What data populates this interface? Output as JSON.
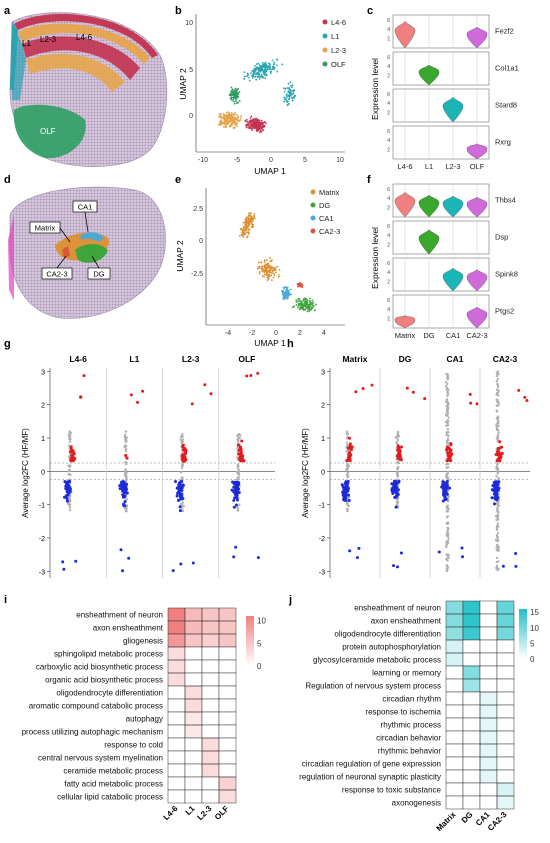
{
  "panel_letters": {
    "a": "a",
    "b": "b",
    "c": "c",
    "d": "d",
    "e": "e",
    "f": "f",
    "g": "g",
    "h": "h",
    "i": "i",
    "j": "j"
  },
  "colors": {
    "L4-6": "#c2334f",
    "L1": "#2ba3b3",
    "L2-3": "#e6a54d",
    "OLF": "#2e9e63",
    "Matrix": "#dc8f2e",
    "DG": "#3ea53c",
    "CA1": "#4ea8d6",
    "CA2-3": "#d9553c",
    "slice": "#b9a6c2",
    "up": "#e41a1c",
    "down": "#1d2bd6",
    "ns": "#b0b0b0",
    "heat_red": "#f08080",
    "heat_teal": "#20c0c8"
  },
  "brain_a": {
    "labels": [
      "L1",
      "L2-3",
      "L4-6",
      "OLF"
    ]
  },
  "brain_d": {
    "labels": [
      "CA1",
      "Matrix",
      "CA2-3",
      "DG"
    ]
  },
  "umap_b": {
    "xlabel": "UMAP 1",
    "ylabel": "UMAP 2",
    "xticks": [
      "-10",
      "-5",
      "0",
      "5",
      "10"
    ],
    "yticks": [
      "10",
      "5",
      "0"
    ],
    "legend": [
      "L4-6",
      "L1",
      "L2-3",
      "OLF"
    ]
  },
  "umap_e": {
    "xlabel": "UMAP 1",
    "ylabel": "UMAP 2",
    "xticks": [
      "-4",
      "-2",
      "0",
      "2",
      "4"
    ],
    "yticks": [
      "2.5",
      "0",
      "-2.5"
    ],
    "legend": [
      "Matrix",
      "DG",
      "CA1",
      "CA2-3"
    ]
  },
  "violin_c": {
    "ylabel": "Expression level",
    "genes": [
      "Fezf2",
      "Col1a1",
      "Stard8",
      "Rxrg"
    ],
    "groups": [
      "L4-6",
      "L1",
      "L2-3",
      "OLF"
    ],
    "yticks": [
      "0",
      "2",
      "4",
      "6"
    ],
    "expr": [
      [
        5.6,
        0,
        0,
        4.4
      ],
      [
        0,
        4.2,
        0,
        0
      ],
      [
        0,
        0,
        5.2,
        0
      ],
      [
        0,
        0,
        0,
        3.2
      ]
    ]
  },
  "violin_f": {
    "ylabel": "Expression level",
    "genes": [
      "Thbs4",
      "Dsp",
      "Spink8",
      "Ptgs2"
    ],
    "groups": [
      "Matrix",
      "DG",
      "CA1",
      "CA2-3"
    ],
    "yticks": [
      "0",
      "2",
      "4",
      "6"
    ],
    "expr": [
      [
        5.2,
        4.6,
        4.4,
        4.2
      ],
      [
        0,
        5.1,
        0,
        0
      ],
      [
        0,
        0,
        4.8,
        4.5
      ],
      [
        2.6,
        0,
        0,
        4.4
      ]
    ]
  },
  "volcano_g": {
    "ylabel": "Average log2FC (HF/MF)",
    "yticks": [
      "3",
      "2",
      "1",
      "0",
      "-1",
      "-2",
      "-3"
    ],
    "clusters": [
      "L4-6",
      "L1",
      "L2-3",
      "OLF"
    ]
  },
  "volcano_h": {
    "ylabel": "Average log2FC (HF/MF)",
    "yticks": [
      "3",
      "2",
      "1",
      "0",
      "-1",
      "-2",
      "-3"
    ],
    "clusters": [
      "Matrix",
      "DG",
      "CA1",
      "CA2-3"
    ]
  },
  "chart_data": [
    {
      "type": "heatmap",
      "panel": "i",
      "title": "",
      "columns": [
        "L4-6",
        "L1",
        "L2-3",
        "OLF"
      ],
      "rows": [
        "ensheathment of neuron",
        "axon ensheathment",
        "gliogenesis",
        "sphingolipid metabolic process",
        "carboxylic acid biosynthetic process",
        "organic acid biosynthetic process",
        "oligodendrocyte differentiation",
        "aromatic compound catabolic process",
        "autophagy",
        "process utilizing autophagic mechanism",
        "response to cold",
        "central nervous system myelination",
        "ceramide metabolic process",
        "fatty acid metabolic process",
        "cellular lipid catabolic process"
      ],
      "values": [
        [
          11,
          6,
          5,
          5
        ],
        [
          11,
          6,
          5,
          5
        ],
        [
          9,
          5,
          4,
          5
        ],
        [
          3,
          0,
          0,
          0
        ],
        [
          3,
          0,
          0,
          0
        ],
        [
          3,
          0,
          0,
          0
        ],
        [
          0,
          3,
          0,
          0
        ],
        [
          0,
          3,
          0,
          0
        ],
        [
          0,
          2,
          0,
          0
        ],
        [
          0,
          2,
          0,
          0
        ],
        [
          0,
          0,
          3,
          0
        ],
        [
          0,
          0,
          3,
          0
        ],
        [
          0,
          0,
          3,
          0
        ],
        [
          0,
          0,
          0,
          4
        ],
        [
          0,
          0,
          0,
          3
        ]
      ],
      "colorbar": {
        "ticks": [
          "10",
          "5",
          "0"
        ],
        "range": [
          0,
          11
        ]
      }
    },
    {
      "type": "heatmap",
      "panel": "j",
      "title": "",
      "columns": [
        "Matrix",
        "DG",
        "CA1",
        "CA2-3"
      ],
      "rows": [
        "ensheathment of neuron",
        "axon ensheathment",
        "oligodendrocyte differentiation",
        "protein autophosphorylation",
        "glycosylceramide metabolic process",
        "learning or memory",
        "Regulation of nervous system process",
        "circadian rhythm",
        "response to ischemia",
        "rhythmic process",
        "circadian behavior",
        "rhythmic behavior",
        "circadian regulation of gene expression",
        "regulation of neuronal synaptic plasticity",
        "response to toxic substance",
        "axonogenesis"
      ],
      "values": [
        [
          9,
          15,
          0,
          11
        ],
        [
          9,
          15,
          0,
          11
        ],
        [
          8,
          14,
          0,
          10
        ],
        [
          3,
          0,
          0,
          0
        ],
        [
          3,
          0,
          0,
          0
        ],
        [
          0,
          9,
          0,
          0
        ],
        [
          0,
          7,
          0,
          0
        ],
        [
          0,
          0,
          2,
          0
        ],
        [
          0,
          0,
          2,
          0
        ],
        [
          0,
          0,
          2,
          0
        ],
        [
          0,
          0,
          2,
          0
        ],
        [
          0,
          0,
          2,
          0
        ],
        [
          0,
          0,
          2,
          0
        ],
        [
          0,
          0,
          2,
          0
        ],
        [
          0,
          0,
          0,
          3
        ],
        [
          0,
          0,
          0,
          2
        ]
      ],
      "colorbar": {
        "ticks": [
          "15",
          "10",
          "5",
          "0"
        ],
        "range": [
          0,
          16
        ]
      }
    }
  ]
}
